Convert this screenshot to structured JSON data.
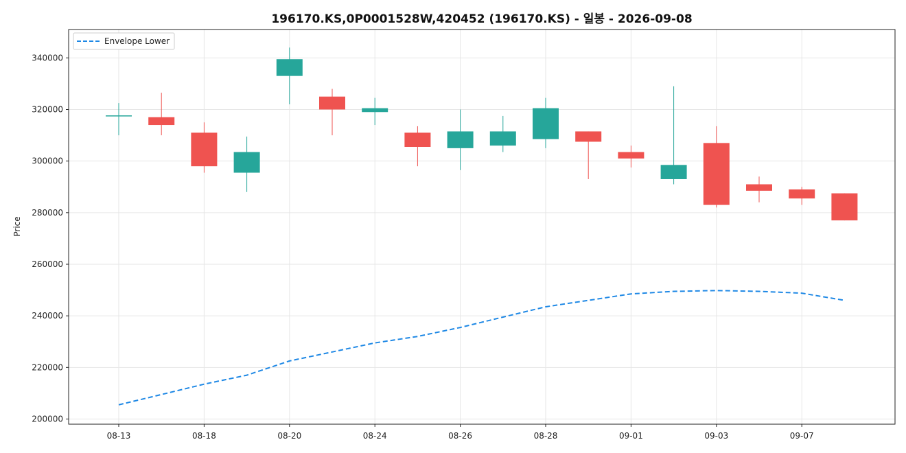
{
  "chart_data": {
    "type": "candlestick",
    "title": "196170.KS,0P0001528W,420452 (196170.KS) - 일봉 - 2026-09-08",
    "ylabel": "Price",
    "xlabel": "",
    "ylim": [
      198000,
      351000
    ],
    "yticks": [
      200000,
      220000,
      240000,
      260000,
      280000,
      300000,
      320000,
      340000
    ],
    "xtick_labels": [
      "08-13",
      "08-18",
      "08-20",
      "08-24",
      "08-26",
      "08-28",
      "09-01",
      "09-03",
      "09-07"
    ],
    "xtick_indices": [
      0,
      2,
      4,
      6,
      8,
      10,
      12,
      14,
      16
    ],
    "grid": true,
    "legend_position": "top-left",
    "colors": {
      "up": "#26a69a",
      "down": "#ef5350",
      "envelope": "#1e88e5"
    },
    "candles": [
      {
        "open": 317500,
        "high": 322500,
        "low": 310000,
        "close": 317500
      },
      {
        "open": 317000,
        "high": 326500,
        "low": 310000,
        "close": 314000
      },
      {
        "open": 311000,
        "high": 315000,
        "low": 295500,
        "close": 298000
      },
      {
        "open": 295500,
        "high": 309500,
        "low": 288000,
        "close": 303500
      },
      {
        "open": 333000,
        "high": 344000,
        "low": 322000,
        "close": 339500
      },
      {
        "open": 325000,
        "high": 328000,
        "low": 310000,
        "close": 320000
      },
      {
        "open": 319000,
        "high": 324500,
        "low": 314000,
        "close": 320500
      },
      {
        "open": 311000,
        "high": 313500,
        "low": 298000,
        "close": 305500
      },
      {
        "open": 305000,
        "high": 320000,
        "low": 296500,
        "close": 311500
      },
      {
        "open": 306000,
        "high": 317500,
        "low": 303500,
        "close": 311500
      },
      {
        "open": 308500,
        "high": 324500,
        "low": 305000,
        "close": 320500
      },
      {
        "open": 311500,
        "high": 311500,
        "low": 293000,
        "close": 307500
      },
      {
        "open": 303500,
        "high": 306000,
        "low": 297500,
        "close": 301000
      },
      {
        "open": 293000,
        "high": 329000,
        "low": 291000,
        "close": 298500
      },
      {
        "open": 307000,
        "high": 313500,
        "low": 282000,
        "close": 283000
      },
      {
        "open": 291000,
        "high": 294000,
        "low": 284000,
        "close": 288500
      },
      {
        "open": 289000,
        "high": 290000,
        "low": 283000,
        "close": 285500
      },
      {
        "open": 287500,
        "high": 287500,
        "low": 277000,
        "close": 277000
      }
    ],
    "series": [
      {
        "name": "Envelope Lower",
        "style": "dashed",
        "values": [
          205500,
          209500,
          213500,
          217000,
          222500,
          226000,
          229500,
          232000,
          235500,
          239500,
          243500,
          246000,
          248500,
          249500,
          249800,
          249500,
          248800,
          246000
        ]
      }
    ]
  }
}
